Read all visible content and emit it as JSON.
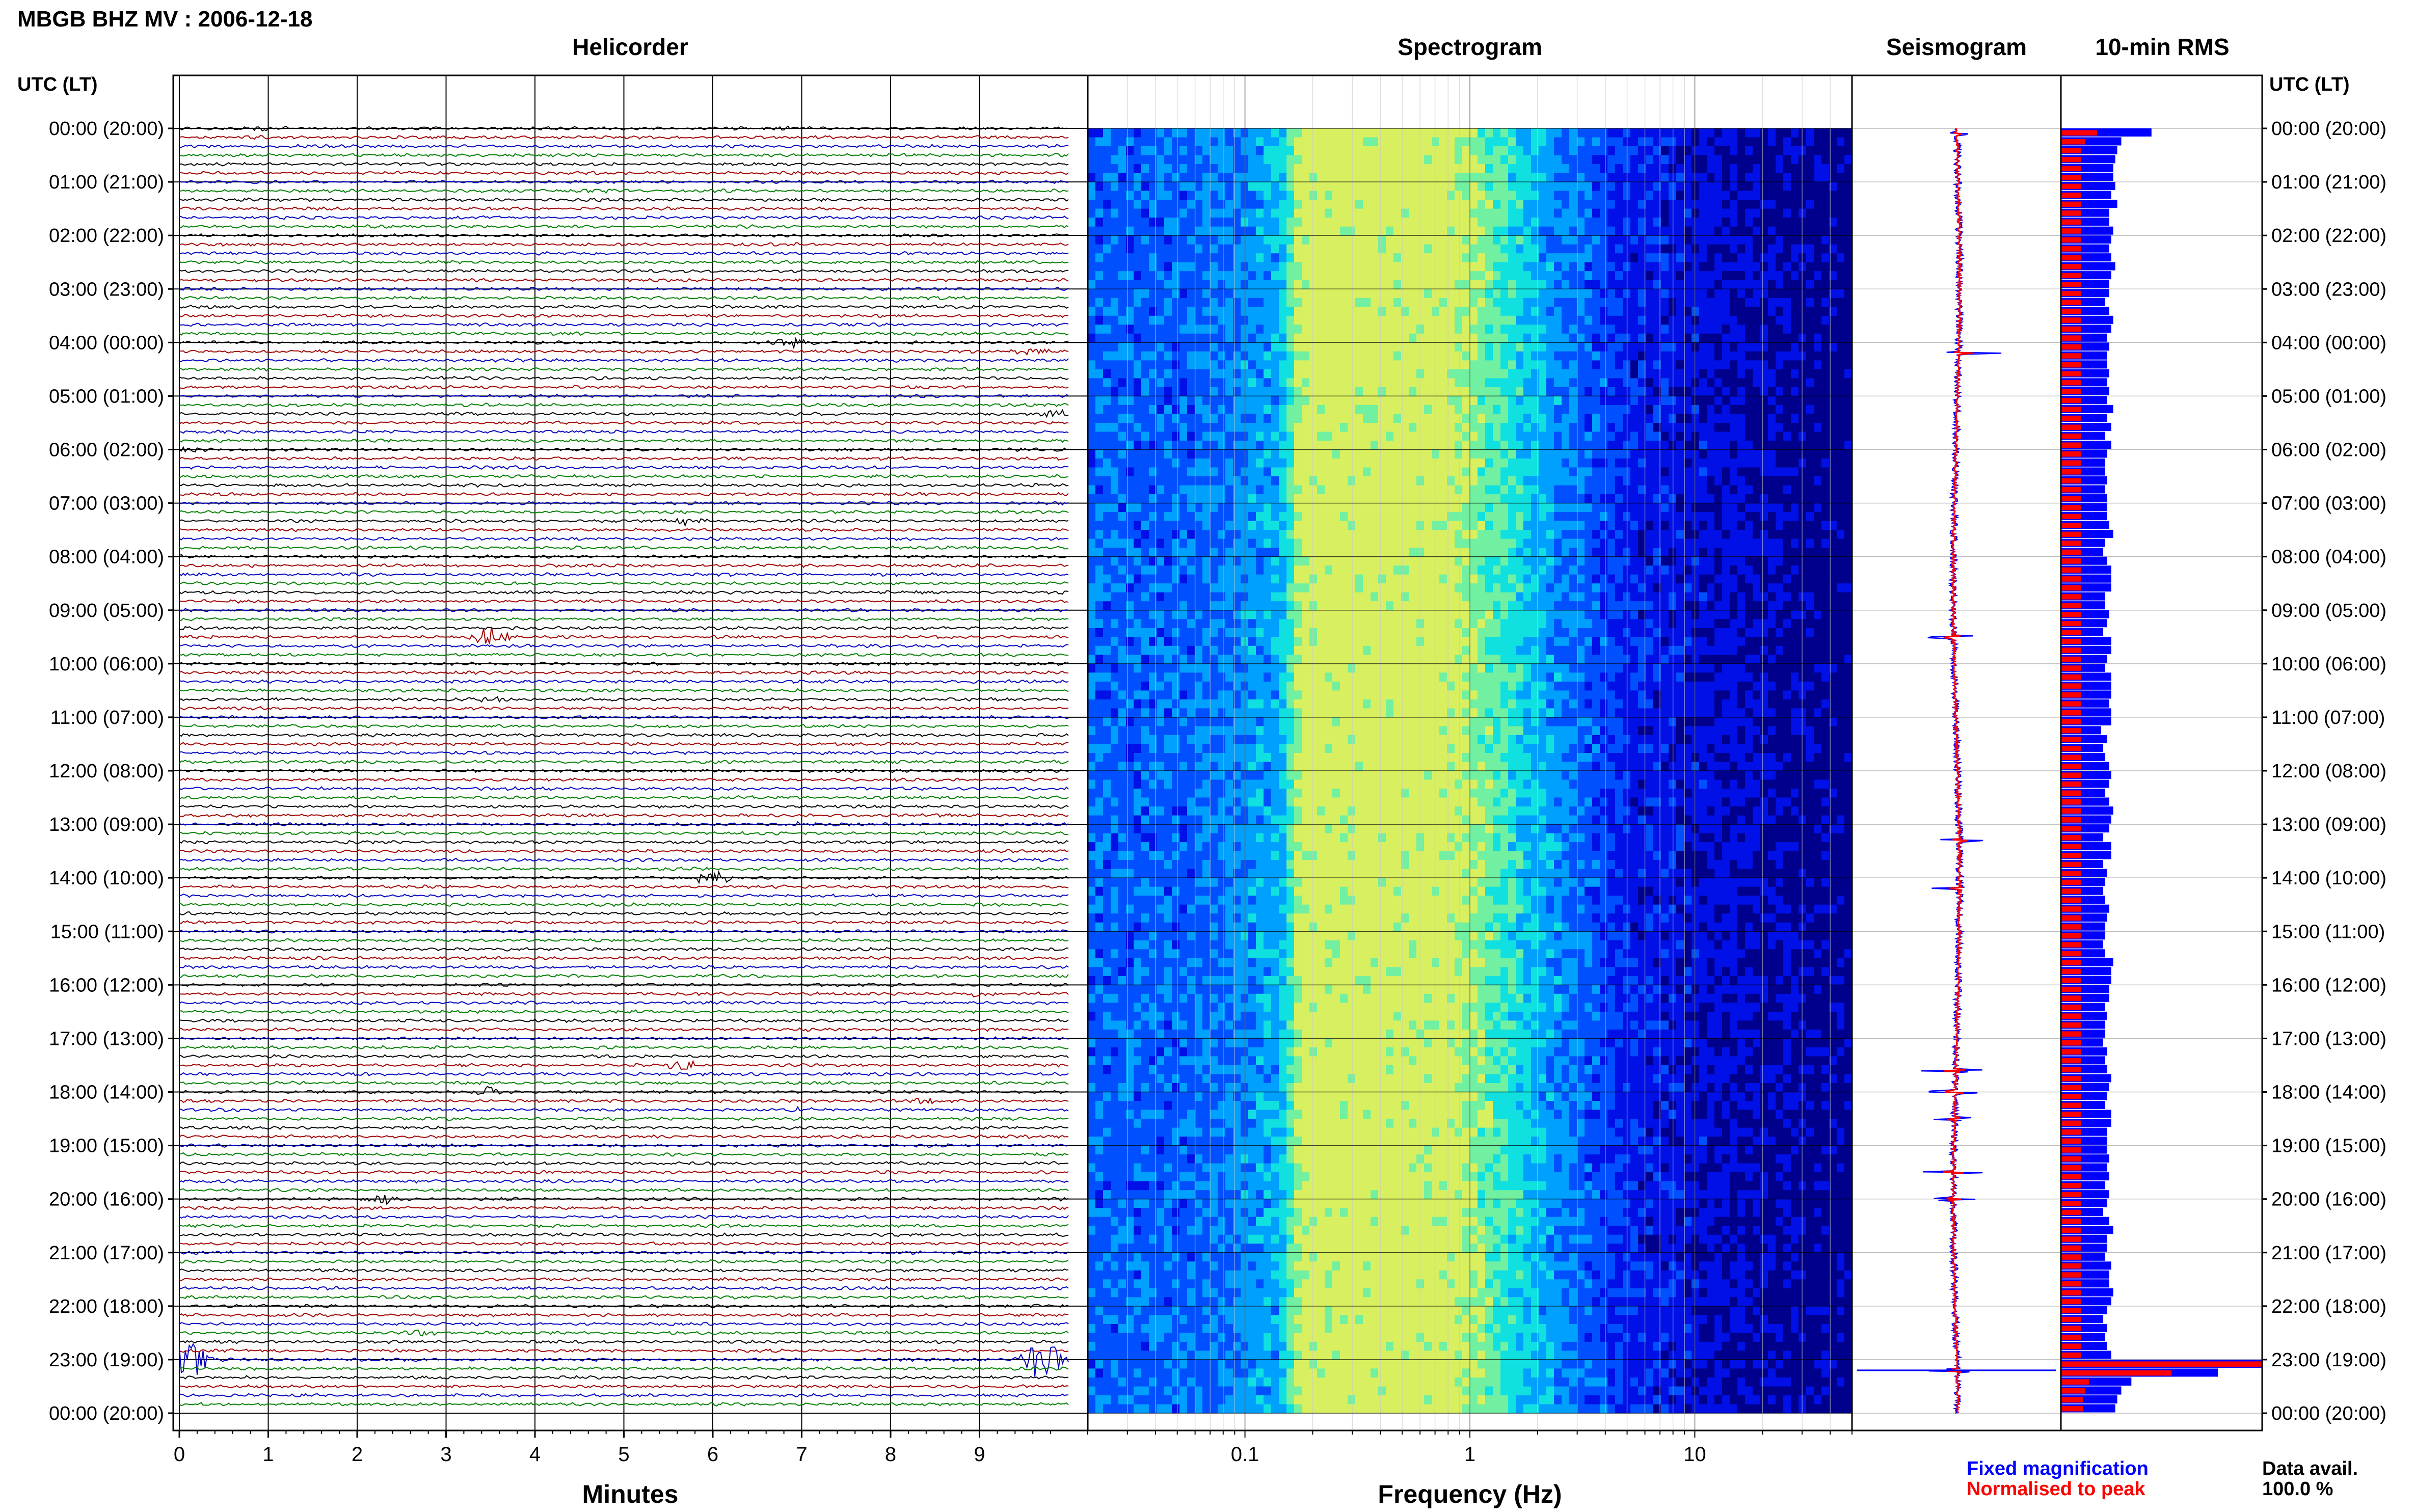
{
  "header": {
    "station_title": "MBGB BHZ MV : 2006-12-18",
    "utc_label_left": "UTC (LT)",
    "utc_label_right": "UTC (LT)"
  },
  "panels": {
    "helicorder_title": "Helicorder",
    "spectrogram_title": "Spectrogram",
    "seismogram_title": "Seismogram",
    "rms_title": "10-min RMS"
  },
  "time_labels": [
    "00:00 (20:00)",
    "01:00 (21:00)",
    "02:00 (22:00)",
    "03:00 (23:00)",
    "04:00 (00:00)",
    "05:00 (01:00)",
    "06:00 (02:00)",
    "07:00 (03:00)",
    "08:00 (04:00)",
    "09:00 (05:00)",
    "10:00 (06:00)",
    "11:00 (07:00)",
    "12:00 (08:00)",
    "13:00 (09:00)",
    "14:00 (10:00)",
    "15:00 (11:00)",
    "16:00 (12:00)",
    "17:00 (13:00)",
    "18:00 (14:00)",
    "19:00 (15:00)",
    "20:00 (16:00)",
    "21:00 (17:00)",
    "22:00 (18:00)",
    "23:00 (19:00)",
    "00:00 (20:00)"
  ],
  "legend": {
    "fixed_label": "Fixed magnification",
    "normalised_label": "Normalised to peak",
    "fixed_color": "#0000ff",
    "normalised_color": "#ff0000"
  },
  "data_avail": {
    "label": "Data avail.",
    "value": "100.0 %"
  },
  "colors": {
    "helicorder_traces": [
      "#000000",
      "#a00000",
      "#0000c0",
      "#008000"
    ],
    "spectrogram_ramp": [
      "#00008c",
      "#0010e6",
      "#0050ff",
      "#00a0ff",
      "#10e0e0",
      "#70f0a0",
      "#d8f060"
    ]
  },
  "chart_data": [
    {
      "type": "line",
      "name": "helicorder",
      "title": "Helicorder",
      "xlabel": "Minutes",
      "xticks": [
        "0",
        "1",
        "2",
        "3",
        "4",
        "5",
        "6",
        "7",
        "8",
        "9"
      ],
      "xlim": [
        0,
        10
      ],
      "rows": 144,
      "row_minutes": 10,
      "events": [
        {
          "hour": 0,
          "row": 0,
          "minute": 1.0,
          "amp": 1.3
        },
        {
          "hour": 0,
          "row": 0,
          "minute": 6.8,
          "amp": 1.6
        },
        {
          "hour": 0,
          "row": 2,
          "minute": 1.4,
          "amp": 1.2
        },
        {
          "hour": 1,
          "row": 1,
          "minute": 4.7,
          "amp": 1.5
        },
        {
          "hour": 3,
          "row": 0,
          "minute": 9.2,
          "amp": 1.2
        },
        {
          "hour": 4,
          "row": 0,
          "minute": 6.9,
          "amp": 3.5
        },
        {
          "hour": 4,
          "row": 1,
          "minute": 9.6,
          "amp": 2.5
        },
        {
          "hour": 5,
          "row": 2,
          "minute": 9.9,
          "amp": 3.0
        },
        {
          "hour": 6,
          "row": 0,
          "minute": 0.1,
          "amp": 2.0
        },
        {
          "hour": 7,
          "row": 2,
          "minute": 5.7,
          "amp": 3.0
        },
        {
          "hour": 8,
          "row": 0,
          "minute": 0.2,
          "amp": 1.5
        },
        {
          "hour": 9,
          "row": 3,
          "minute": 3.5,
          "amp": 7.0
        },
        {
          "hour": 10,
          "row": 4,
          "minute": 3.5,
          "amp": 2.5
        },
        {
          "hour": 13,
          "row": 0,
          "minute": 7.0,
          "amp": 1.2
        },
        {
          "hour": 14,
          "row": 0,
          "minute": 6.0,
          "amp": 4.0
        },
        {
          "hour": 16,
          "row": 1,
          "minute": 9.0,
          "amp": 1.5
        },
        {
          "hour": 17,
          "row": 3,
          "minute": 5.6,
          "amp": 4.0
        },
        {
          "hour": 18,
          "row": 0,
          "minute": 3.5,
          "amp": 3.0
        },
        {
          "hour": 18,
          "row": 1,
          "minute": 8.4,
          "amp": 2.0
        },
        {
          "hour": 18,
          "row": 2,
          "minute": 6.9,
          "amp": 2.0
        },
        {
          "hour": 20,
          "row": 0,
          "minute": 2.3,
          "amp": 3.5
        },
        {
          "hour": 22,
          "row": 3,
          "minute": 2.7,
          "amp": 2.5
        },
        {
          "hour": 23,
          "row": 0,
          "minute": 0.1,
          "amp": 12.0
        },
        {
          "hour": 23,
          "row": 0,
          "minute": 9.7,
          "amp": 16.0
        }
      ]
    },
    {
      "type": "heatmap",
      "name": "spectrogram",
      "title": "Spectrogram",
      "xlabel": "Frequency (Hz)",
      "xscale": "log",
      "xlim": [
        0.02,
        50
      ],
      "xticks": [
        0.1,
        1,
        10
      ],
      "xtick_labels": [
        "0.1",
        "1",
        "10"
      ],
      "peak_band_hz": [
        0.18,
        0.8
      ],
      "rows": 144
    },
    {
      "type": "line",
      "name": "seismogram",
      "title": "Seismogram",
      "orientation": "vertical",
      "spikes_hour": [
        0.1,
        4.2,
        9.5,
        13.3,
        14.2,
        17.6,
        18.0,
        18.5,
        19.5,
        20.0,
        23.2
      ]
    },
    {
      "type": "bar",
      "name": "rms",
      "title": "10-min RMS",
      "orientation": "horizontal",
      "rows": 144,
      "series": [
        {
          "name": "Fixed magnification",
          "values": [
            0.45,
            0.3,
            0.28,
            0.27,
            0.26,
            0.26,
            0.27,
            0.25,
            0.28,
            0.24,
            0.24,
            0.26,
            0.25,
            0.24,
            0.25,
            0.27,
            0.25,
            0.24,
            0.24,
            0.22,
            0.24,
            0.26,
            0.25,
            0.23,
            0.24,
            0.23,
            0.23,
            0.24,
            0.23,
            0.24,
            0.23,
            0.26,
            0.23,
            0.25,
            0.22,
            0.25,
            0.23,
            0.22,
            0.22,
            0.23,
            0.22,
            0.23,
            0.23,
            0.23,
            0.24,
            0.26,
            0.22,
            0.21,
            0.23,
            0.25,
            0.25,
            0.25,
            0.22,
            0.22,
            0.24,
            0.23,
            0.21,
            0.25,
            0.25,
            0.23,
            0.22,
            0.25,
            0.25,
            0.25,
            0.24,
            0.25,
            0.25,
            0.2,
            0.23,
            0.21,
            0.22,
            0.24,
            0.25,
            0.24,
            0.22,
            0.24,
            0.26,
            0.25,
            0.24,
            0.21,
            0.25,
            0.25,
            0.21,
            0.23,
            0.22,
            0.21,
            0.22,
            0.24,
            0.23,
            0.22,
            0.22,
            0.21,
            0.22,
            0.26,
            0.25,
            0.25,
            0.24,
            0.24,
            0.22,
            0.23,
            0.22,
            0.22,
            0.21,
            0.23,
            0.22,
            0.23,
            0.25,
            0.24,
            0.23,
            0.22,
            0.25,
            0.25,
            0.23,
            0.23,
            0.23,
            0.24,
            0.23,
            0.24,
            0.22,
            0.24,
            0.23,
            0.21,
            0.24,
            0.26,
            0.23,
            0.23,
            0.22,
            0.25,
            0.24,
            0.24,
            0.26,
            0.25,
            0.23,
            0.21,
            0.23,
            0.22,
            0.23,
            0.25,
            1.0,
            0.78,
            0.35,
            0.3,
            0.28,
            0.27
          ]
        },
        {
          "name": "Normalised to peak",
          "values": [
            0.18,
            0.12,
            0.1,
            0.1,
            0.1,
            0.1,
            0.1,
            0.1,
            0.1,
            0.1,
            0.1,
            0.1,
            0.1,
            0.1,
            0.1,
            0.1,
            0.1,
            0.1,
            0.1,
            0.1,
            0.1,
            0.1,
            0.1,
            0.1,
            0.1,
            0.1,
            0.1,
            0.1,
            0.1,
            0.1,
            0.1,
            0.1,
            0.1,
            0.1,
            0.1,
            0.1,
            0.1,
            0.1,
            0.1,
            0.1,
            0.1,
            0.1,
            0.1,
            0.1,
            0.1,
            0.1,
            0.1,
            0.1,
            0.1,
            0.1,
            0.1,
            0.1,
            0.1,
            0.1,
            0.1,
            0.1,
            0.1,
            0.1,
            0.1,
            0.1,
            0.1,
            0.1,
            0.1,
            0.1,
            0.1,
            0.1,
            0.1,
            0.1,
            0.1,
            0.1,
            0.1,
            0.1,
            0.1,
            0.1,
            0.1,
            0.1,
            0.1,
            0.1,
            0.1,
            0.1,
            0.1,
            0.1,
            0.1,
            0.1,
            0.1,
            0.1,
            0.1,
            0.1,
            0.1,
            0.1,
            0.1,
            0.1,
            0.1,
            0.1,
            0.1,
            0.1,
            0.1,
            0.1,
            0.1,
            0.1,
            0.1,
            0.1,
            0.1,
            0.1,
            0.1,
            0.1,
            0.1,
            0.1,
            0.1,
            0.1,
            0.1,
            0.1,
            0.1,
            0.1,
            0.1,
            0.1,
            0.1,
            0.1,
            0.1,
            0.1,
            0.1,
            0.1,
            0.1,
            0.1,
            0.1,
            0.1,
            0.1,
            0.1,
            0.1,
            0.1,
            0.1,
            0.1,
            0.1,
            0.1,
            0.1,
            0.1,
            0.1,
            0.1,
            1.0,
            0.55,
            0.14,
            0.12,
            0.11,
            0.11
          ]
        }
      ]
    }
  ]
}
